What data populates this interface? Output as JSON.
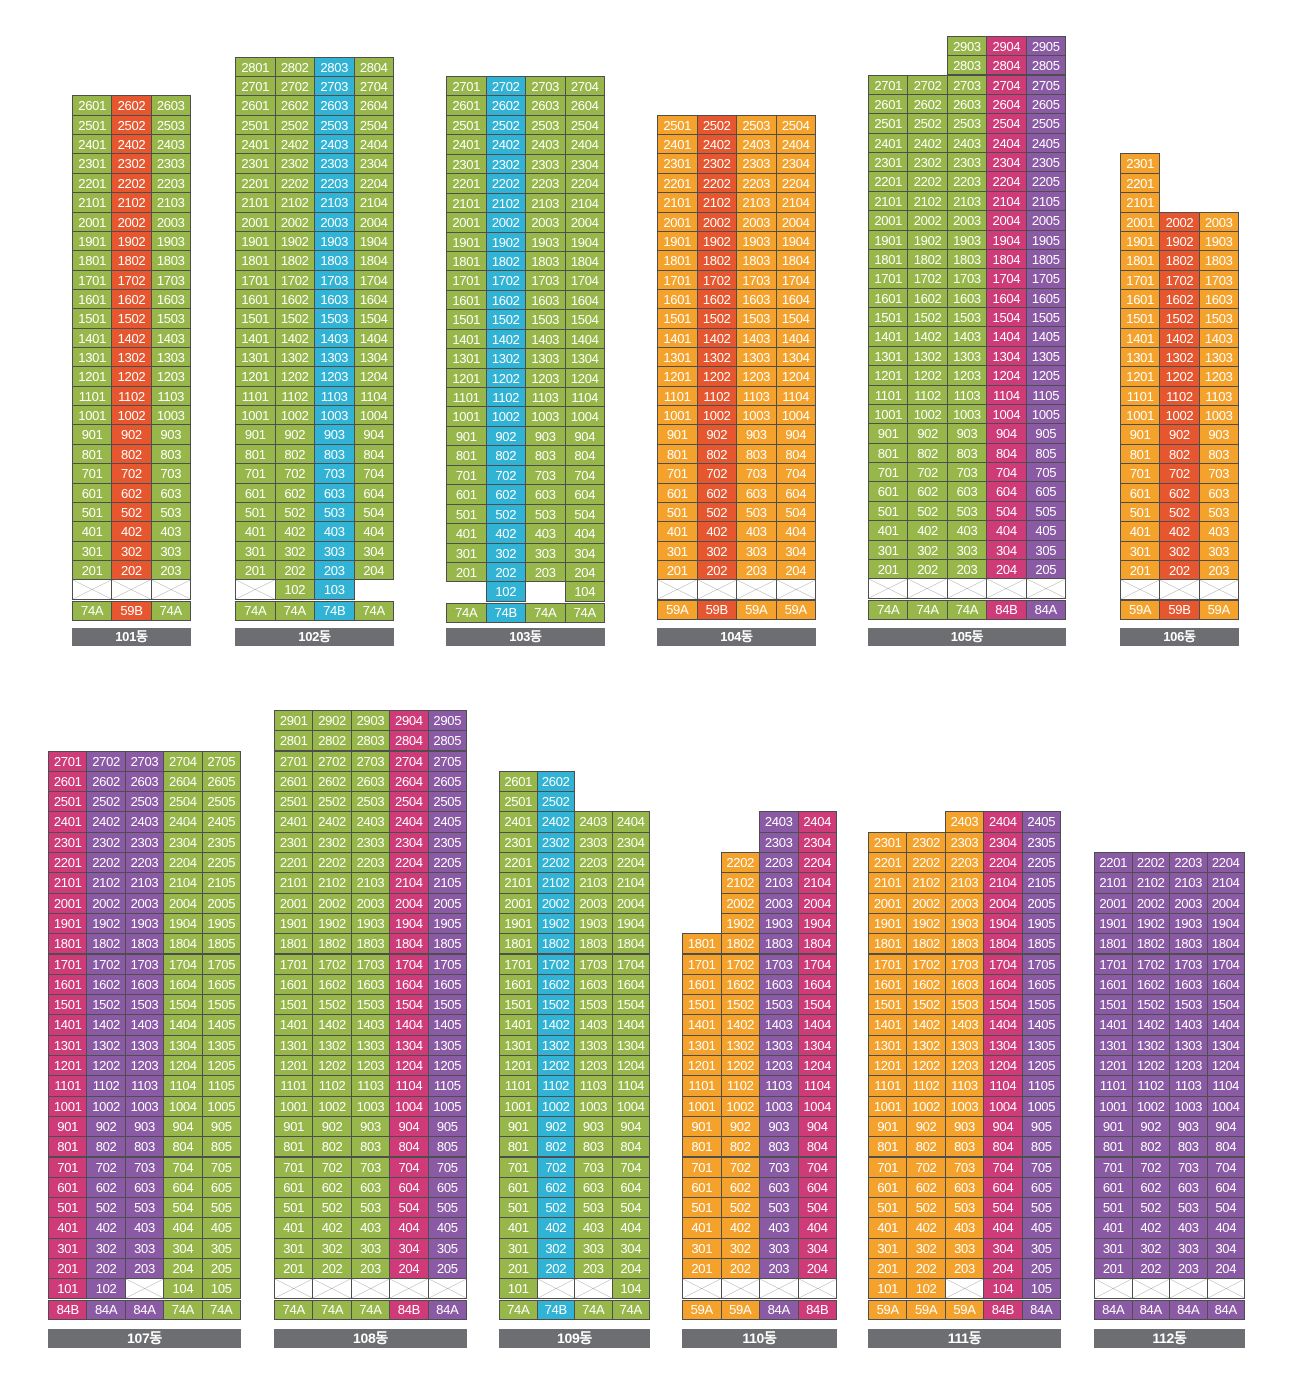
{
  "colors": {
    "G": "#97b74a",
    "R": "#e6562f",
    "B": "#31b3d6",
    "O": "#f4a22c",
    "M": "#cf3a78",
    "P": "#8a5aa5"
  },
  "type_colors": {
    "74A": "G",
    "74B": "B",
    "59A": "O",
    "59B": "R",
    "84A": "P",
    "84B": "M"
  },
  "buildings": [
    {
      "name": "101동",
      "types": [
        "74A",
        "59B",
        "74A"
      ],
      "floors": [
        {
          "floor": 26,
          "lines": [
            1,
            2,
            3
          ]
        },
        {
          "floor_range": [
            2,
            25
          ],
          "lines": [
            1,
            2,
            3
          ]
        }
      ],
      "ground": [
        {
          "line": 1,
          "unit": null
        },
        {
          "line": 2,
          "unit": null
        },
        {
          "line": 3,
          "unit": null
        }
      ]
    },
    {
      "name": "102동",
      "types": [
        "74A",
        "74A",
        "74B",
        "74A"
      ],
      "floors": [
        {
          "floor": 28,
          "lines": [
            1,
            2,
            3,
            4
          ]
        },
        {
          "floor": 27,
          "lines": [
            1,
            2,
            3,
            4
          ]
        },
        {
          "floor_range": [
            2,
            26
          ],
          "lines": [
            1,
            2,
            3,
            4
          ]
        }
      ],
      "ground": [
        {
          "line": 1,
          "unit": null
        },
        {
          "line": 2,
          "unit": "102"
        },
        {
          "line": 3,
          "unit": "103"
        }
      ]
    },
    {
      "name": "103동",
      "types": [
        "74A",
        "74B",
        "74A",
        "74A"
      ],
      "floors": [
        {
          "floor": 27,
          "lines": [
            1,
            2,
            3,
            4
          ]
        },
        {
          "floor_range": [
            2,
            26
          ],
          "lines": [
            1,
            2,
            3,
            4
          ]
        }
      ],
      "ground": [
        {
          "line": 2,
          "unit": "102"
        },
        {
          "line": 4,
          "unit": "104"
        }
      ]
    },
    {
      "name": "104동",
      "types": [
        "59A",
        "59B",
        "59A",
        "59A"
      ],
      "floors": [
        {
          "floor": 25,
          "lines": [
            1,
            2,
            3,
            4
          ]
        },
        {
          "floor_range": [
            2,
            24
          ],
          "lines": [
            1,
            2,
            3,
            4
          ]
        }
      ],
      "ground": [
        {
          "line": 1,
          "unit": null
        },
        {
          "line": 2,
          "unit": null
        },
        {
          "line": 3,
          "unit": null
        },
        {
          "line": 4,
          "unit": null
        }
      ]
    },
    {
      "name": "105동",
      "types": [
        "74A",
        "74A",
        "74A",
        "84B",
        "84A"
      ],
      "floors": [
        {
          "floor": 29,
          "lines": [
            3,
            4,
            5
          ]
        },
        {
          "floor": 28,
          "lines": [
            3,
            4,
            5
          ]
        },
        {
          "floor": 27,
          "lines": [
            1,
            2,
            3,
            4,
            5
          ]
        },
        {
          "floor_range": [
            2,
            26
          ],
          "lines": [
            1,
            2,
            3,
            4,
            5
          ]
        }
      ],
      "ground": [
        {
          "line": 1,
          "unit": null
        },
        {
          "line": 2,
          "unit": null
        },
        {
          "line": 3,
          "unit": null
        },
        {
          "line": 4,
          "unit": null
        },
        {
          "line": 5,
          "unit": null
        }
      ]
    },
    {
      "name": "106동",
      "types": [
        "59A",
        "59B",
        "59A"
      ],
      "floors": [
        {
          "floor": 23,
          "lines": [
            1
          ]
        },
        {
          "floor": 22,
          "lines": [
            1
          ]
        },
        {
          "floor": 21,
          "lines": [
            1
          ]
        },
        {
          "floor_range": [
            2,
            20
          ],
          "lines": [
            1,
            2,
            3
          ]
        }
      ],
      "ground": [
        {
          "line": 1,
          "unit": null
        },
        {
          "line": 2,
          "unit": null
        },
        {
          "line": 3,
          "unit": null
        }
      ]
    },
    {
      "name": "107동",
      "types": [
        "84B",
        "84A",
        "84A",
        "74A",
        "74A"
      ],
      "floors": [
        {
          "floor_range": [
            2,
            27
          ],
          "lines": [
            1,
            2,
            3,
            4,
            5
          ]
        }
      ],
      "ground": [
        {
          "line": 1,
          "unit": "101"
        },
        {
          "line": 2,
          "unit": "102"
        },
        {
          "line": 3,
          "unit": null
        },
        {
          "line": 4,
          "unit": "104"
        },
        {
          "line": 5,
          "unit": "105"
        }
      ]
    },
    {
      "name": "108동",
      "types": [
        "74A",
        "74A",
        "74A",
        "84B",
        "84A"
      ],
      "floors": [
        {
          "floor_range": [
            2,
            29
          ],
          "lines": [
            1,
            2,
            3,
            4,
            5
          ]
        }
      ],
      "ground": [
        {
          "line": 1,
          "unit": null
        },
        {
          "line": 2,
          "unit": null
        },
        {
          "line": 3,
          "unit": null
        },
        {
          "line": 4,
          "unit": null
        },
        {
          "line": 5,
          "unit": null
        }
      ]
    },
    {
      "name": "109동",
      "types": [
        "74A",
        "74B",
        "74A",
        "74A"
      ],
      "floors": [
        {
          "floor": 26,
          "lines": [
            1,
            2
          ]
        },
        {
          "floor": 25,
          "lines": [
            1,
            2
          ]
        },
        {
          "floor_range": [
            2,
            24
          ],
          "lines": [
            1,
            2,
            3,
            4
          ]
        }
      ],
      "ground": [
        {
          "line": 1,
          "unit": "101"
        },
        {
          "line": 2,
          "unit": null
        },
        {
          "line": 3,
          "unit": null
        },
        {
          "line": 4,
          "unit": "104"
        }
      ]
    },
    {
      "name": "110동",
      "types": [
        "59A",
        "59A",
        "84A",
        "84B"
      ],
      "floors": [
        {
          "floor": 24,
          "lines": [
            3,
            4
          ]
        },
        {
          "floor": 23,
          "lines": [
            3,
            4
          ]
        },
        {
          "floor": 22,
          "lines": [
            2,
            3,
            4
          ]
        },
        {
          "floor": 21,
          "lines": [
            2,
            3,
            4
          ]
        },
        {
          "floor": 20,
          "lines": [
            2,
            3,
            4
          ]
        },
        {
          "floor": 19,
          "lines": [
            2,
            3,
            4
          ]
        },
        {
          "floor_range": [
            2,
            18
          ],
          "lines": [
            1,
            2,
            3,
            4
          ]
        }
      ],
      "ground": [
        {
          "line": 1,
          "unit": null
        },
        {
          "line": 2,
          "unit": null
        },
        {
          "line": 3,
          "unit": null
        },
        {
          "line": 4,
          "unit": null
        }
      ]
    },
    {
      "name": "111동",
      "types": [
        "59A",
        "59A",
        "59A",
        "84B",
        "84A"
      ],
      "floors": [
        {
          "floor": 24,
          "lines": [
            3,
            4,
            5
          ]
        },
        {
          "floor": 23,
          "lines": [
            1,
            2,
            3,
            4,
            5
          ]
        },
        {
          "floor_range": [
            2,
            22
          ],
          "lines": [
            1,
            2,
            3,
            4,
            5
          ]
        }
      ],
      "ground": [
        {
          "line": 1,
          "unit": "101"
        },
        {
          "line": 2,
          "unit": "102"
        },
        {
          "line": 3,
          "unit": null
        },
        {
          "line": 4,
          "unit": "104"
        },
        {
          "line": 5,
          "unit": "105"
        }
      ]
    },
    {
      "name": "112동",
      "types": [
        "84A",
        "84A",
        "84A",
        "84A"
      ],
      "floors": [
        {
          "floor_range": [
            2,
            22
          ],
          "lines": [
            1,
            2,
            3,
            4
          ]
        }
      ],
      "ground": [
        {
          "line": 1,
          "unit": null
        },
        {
          "line": 2,
          "unit": null
        },
        {
          "line": 3,
          "unit": null
        },
        {
          "line": 4,
          "unit": null
        }
      ]
    }
  ]
}
